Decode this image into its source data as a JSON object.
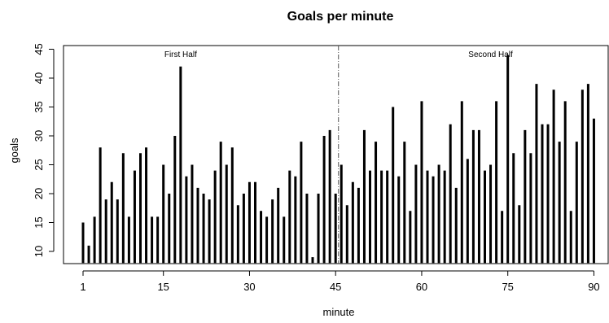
{
  "chart_data": {
    "type": "bar",
    "title": "Goals per minute",
    "xlabel": "minute",
    "ylabel": "goals",
    "x_ticks": [
      1,
      15,
      30,
      45,
      60,
      75,
      90
    ],
    "y_ticks": [
      10,
      15,
      20,
      25,
      30,
      35,
      40,
      45
    ],
    "xlim": [
      0.5,
      90.5
    ],
    "ylim": [
      8,
      45
    ],
    "baseline": 8,
    "annotations": [
      {
        "text": "First Half",
        "x": 18
      },
      {
        "text": "Second Half",
        "x": 72
      }
    ],
    "vline_x": 45.5,
    "vline_style": "dashdot",
    "x": [
      1,
      2,
      3,
      4,
      5,
      6,
      7,
      8,
      9,
      10,
      11,
      12,
      13,
      14,
      15,
      16,
      17,
      18,
      19,
      20,
      21,
      22,
      23,
      24,
      25,
      26,
      27,
      28,
      29,
      30,
      31,
      32,
      33,
      34,
      35,
      36,
      37,
      38,
      39,
      40,
      41,
      42,
      43,
      44,
      45,
      46,
      47,
      48,
      49,
      50,
      51,
      52,
      53,
      54,
      55,
      56,
      57,
      58,
      59,
      60,
      61,
      62,
      63,
      64,
      65,
      66,
      67,
      68,
      69,
      70,
      71,
      72,
      73,
      74,
      75,
      76,
      77,
      78,
      79,
      80,
      81,
      82,
      83,
      84,
      85,
      86,
      87,
      88,
      89,
      90
    ],
    "values": [
      15,
      11,
      16,
      28,
      19,
      22,
      19,
      27,
      16,
      24,
      27,
      28,
      16,
      16,
      25,
      20,
      30,
      42,
      23,
      25,
      21,
      20,
      19,
      24,
      29,
      25,
      28,
      18,
      20,
      22,
      22,
      17,
      16,
      19,
      21,
      16,
      24,
      23,
      29,
      20,
      9,
      20,
      30,
      31,
      20,
      25,
      18,
      22,
      21,
      31,
      24,
      29,
      24,
      24,
      35,
      23,
      29,
      17,
      25,
      36,
      24,
      23,
      25,
      24,
      32,
      21,
      36,
      26,
      31,
      31,
      24,
      25,
      36,
      17,
      44,
      27,
      18,
      31,
      27,
      39,
      32,
      32,
      38,
      29,
      36,
      17,
      29,
      38,
      39,
      33
    ]
  }
}
